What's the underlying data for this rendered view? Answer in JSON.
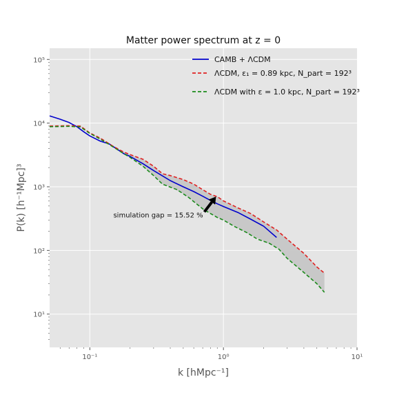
{
  "chart_data": {
    "type": "line",
    "title": "Matter power spectrum at z = 0",
    "xlabel": "k [hMpc⁻¹]",
    "ylabel": "P(k) [h⁻¹Mpc]³",
    "xscale": "log",
    "yscale": "log",
    "xlim": [
      0.05,
      10
    ],
    "ylim": [
      3,
      150000
    ],
    "grid": true,
    "legend_position": "top-right",
    "xticks": [
      {
        "value": 0.1,
        "label": "10⁻¹"
      },
      {
        "value": 1,
        "label": "10⁰"
      },
      {
        "value": 10,
        "label": "10¹"
      }
    ],
    "yticks": [
      {
        "value": 10,
        "label": "10¹"
      },
      {
        "value": 100,
        "label": "10²"
      },
      {
        "value": 1000,
        "label": "10³"
      },
      {
        "value": 10000,
        "label": "10⁴"
      },
      {
        "value": 100000,
        "label": "10⁵"
      }
    ],
    "series": [
      {
        "name": "CAMB + ΛCDM",
        "color": "#0000cc",
        "dash": "solid",
        "points": [
          [
            0.05,
            13000
          ],
          [
            0.06,
            11500
          ],
          [
            0.07,
            10200
          ],
          [
            0.08,
            8800
          ],
          [
            0.09,
            7300
          ],
          [
            0.1,
            6300
          ],
          [
            0.12,
            5200
          ],
          [
            0.14,
            4700
          ],
          [
            0.16,
            3900
          ],
          [
            0.18,
            3300
          ],
          [
            0.2,
            3000
          ],
          [
            0.25,
            2300
          ],
          [
            0.3,
            1800
          ],
          [
            0.4,
            1250
          ],
          [
            0.5,
            1000
          ],
          [
            0.6,
            840
          ],
          [
            0.7,
            710
          ],
          [
            0.8,
            610
          ],
          [
            0.9,
            540
          ],
          [
            1.0,
            490
          ],
          [
            1.3,
            390
          ],
          [
            1.6,
            310
          ],
          [
            2.0,
            240
          ],
          [
            2.5,
            160
          ]
        ]
      },
      {
        "name": "ΛCDM, ε₁ = 0.89 kpc, N_part = 192³",
        "color": "#e02020",
        "dash": "dashed",
        "points": [
          [
            0.05,
            9000
          ],
          [
            0.07,
            9100
          ],
          [
            0.085,
            9000
          ],
          [
            0.1,
            7000
          ],
          [
            0.12,
            5800
          ],
          [
            0.15,
            4300
          ],
          [
            0.18,
            3500
          ],
          [
            0.2,
            3200
          ],
          [
            0.25,
            2700
          ],
          [
            0.3,
            2100
          ],
          [
            0.35,
            1600
          ],
          [
            0.4,
            1500
          ],
          [
            0.5,
            1300
          ],
          [
            0.6,
            1100
          ],
          [
            0.7,
            900
          ],
          [
            0.8,
            760
          ],
          [
            0.9,
            700
          ],
          [
            1.0,
            600
          ],
          [
            1.3,
            460
          ],
          [
            1.6,
            380
          ],
          [
            2.0,
            280
          ],
          [
            2.5,
            210
          ],
          [
            3.0,
            150
          ],
          [
            4.0,
            90
          ],
          [
            5.0,
            55
          ],
          [
            5.7,
            44
          ]
        ]
      },
      {
        "name": "ΛCDM with ε = 1.0 kpc, N_part = 192³",
        "color": "#1a8a1a",
        "dash": "dashed",
        "points": [
          [
            0.05,
            8800
          ],
          [
            0.07,
            8900
          ],
          [
            0.085,
            8700
          ],
          [
            0.1,
            6900
          ],
          [
            0.12,
            5600
          ],
          [
            0.15,
            4200
          ],
          [
            0.18,
            3300
          ],
          [
            0.2,
            2900
          ],
          [
            0.25,
            2100
          ],
          [
            0.3,
            1500
          ],
          [
            0.35,
            1100
          ],
          [
            0.45,
            900
          ],
          [
            0.55,
            680
          ],
          [
            0.7,
            450
          ],
          [
            0.8,
            380
          ],
          [
            0.9,
            330
          ],
          [
            1.0,
            300
          ],
          [
            1.2,
            240
          ],
          [
            1.5,
            190
          ],
          [
            1.8,
            150
          ],
          [
            2.2,
            130
          ],
          [
            2.6,
            105
          ],
          [
            3.0,
            75
          ],
          [
            4.0,
            45
          ],
          [
            5.0,
            30
          ],
          [
            5.7,
            22
          ]
        ]
      }
    ],
    "fill_between": {
      "upper": "ΛCDM, ε₁ = 0.89 kpc, N_part = 192³",
      "lower": "ΛCDM with ε = 1.0 kpc, N_part = 192³",
      "color": "#c4c4c4"
    },
    "annotations": [
      {
        "text": "simulation gap = 15.52 %",
        "text_at": [
          0.15,
          330
        ],
        "arrow_to": [
          0.88,
          700
        ]
      }
    ]
  }
}
